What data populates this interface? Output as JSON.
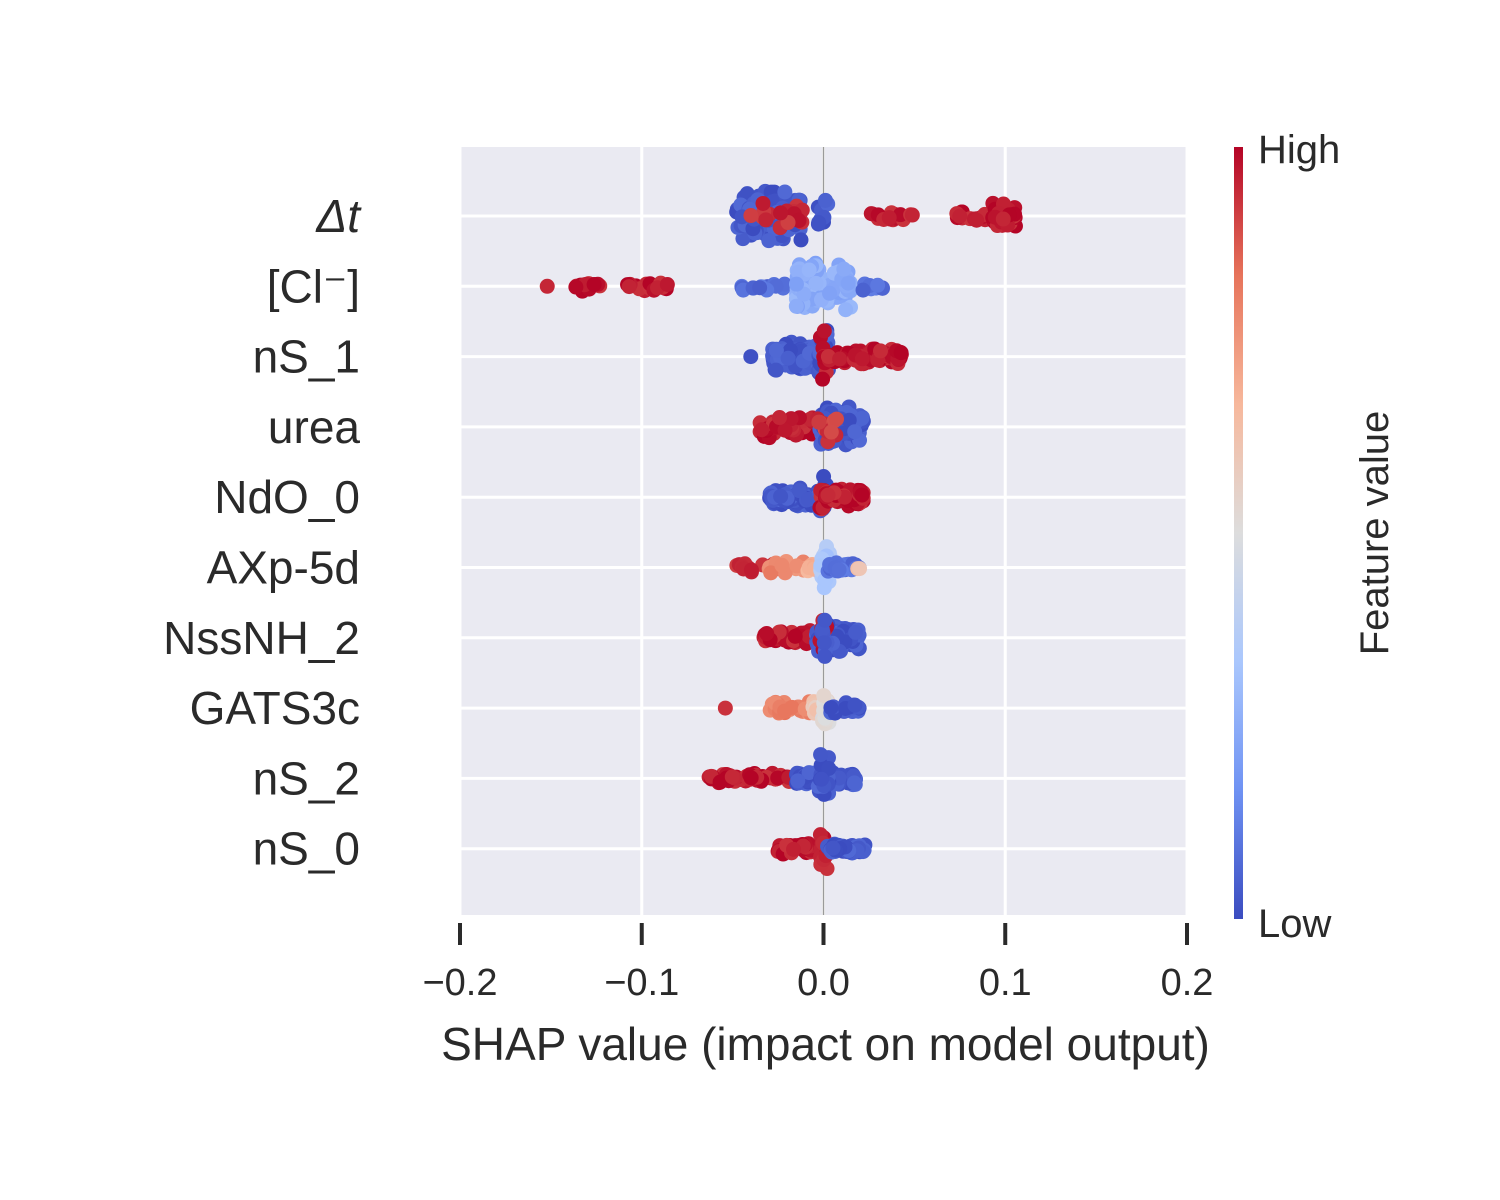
{
  "chart_data": {
    "type": "scatter",
    "subtype": "shap-beeswarm",
    "title": "",
    "xlabel": "SHAP value (impact on model output)",
    "ylabel": "",
    "xlim": [
      -0.2,
      0.2
    ],
    "xticks": [
      -0.2,
      -0.1,
      0.0,
      0.1,
      0.2
    ],
    "xtick_labels": [
      "−0.2",
      "−0.1",
      "0.0",
      "0.1",
      "0.2"
    ],
    "grid": true,
    "colorbar": {
      "label": "Feature value",
      "high_label": "High",
      "low_label": "Low",
      "colormap": [
        "#3b4cc0",
        "#6f92f3",
        "#aac7fd",
        "#dddddd",
        "#f7b89c",
        "#e7745b",
        "#b40426"
      ],
      "placement": "right"
    },
    "colors": {
      "background": "#eaeaf2",
      "grid": "#ffffff",
      "zero_line": "#9a9a9a",
      "high": "#b40426",
      "low": "#3b4cc0"
    },
    "features": [
      {
        "name": "Δt",
        "italic": true,
        "clusters": [
          {
            "x": [
              -0.048,
              -0.012
            ],
            "v": 0.03,
            "n": 160,
            "spread": 1.0
          },
          {
            "x": [
              -0.04,
              -0.01
            ],
            "v": 0.95,
            "n": 18,
            "spread": 0.5
          },
          {
            "x": [
              -0.003,
              0.003
            ],
            "v": 0.03,
            "n": 10,
            "spread": 0.9
          },
          {
            "x": [
              0.026,
              0.05
            ],
            "v": 0.97,
            "n": 16,
            "spread": 0.25
          },
          {
            "x": [
              0.073,
              0.09
            ],
            "v": 0.97,
            "n": 16,
            "spread": 0.25
          },
          {
            "x": [
              0.093,
              0.106
            ],
            "v": 0.97,
            "n": 40,
            "spread": 0.55
          }
        ]
      },
      {
        "name": "[Cl⁻]",
        "italic": false,
        "clusters": [
          {
            "x": [
              -0.152,
              -0.152
            ],
            "v": 0.97,
            "n": 1,
            "spread": 0.0
          },
          {
            "x": [
              -0.137,
              -0.122
            ],
            "v": 0.97,
            "n": 14,
            "spread": 0.2
          },
          {
            "x": [
              -0.108,
              -0.084
            ],
            "v": 0.97,
            "n": 20,
            "spread": 0.2
          },
          {
            "x": [
              -0.045,
              -0.02
            ],
            "v": 0.08,
            "n": 14,
            "spread": 0.2
          },
          {
            "x": [
              -0.015,
              0.015
            ],
            "v": 0.25,
            "n": 110,
            "spread": 1.0
          },
          {
            "x": [
              0.015,
              0.036
            ],
            "v": 0.08,
            "n": 8,
            "spread": 0.2
          }
        ]
      },
      {
        "name": "nS_1",
        "italic": false,
        "clusters": [
          {
            "x": [
              -0.04,
              -0.04
            ],
            "v": 0.03,
            "n": 1,
            "spread": 0.0
          },
          {
            "x": [
              -0.028,
              0.0
            ],
            "v": 0.03,
            "n": 120,
            "spread": 0.6
          },
          {
            "x": [
              -0.003,
              0.003
            ],
            "v": 0.03,
            "n": 24,
            "spread": 1.05
          },
          {
            "x": [
              -0.002,
              0.002
            ],
            "v": 0.97,
            "n": 8,
            "spread": 1.1
          },
          {
            "x": [
              0.002,
              0.043
            ],
            "v": 0.97,
            "n": 90,
            "spread": 0.3
          }
        ]
      },
      {
        "name": "urea",
        "italic": false,
        "clusters": [
          {
            "x": [
              -0.036,
              -0.005
            ],
            "v": 0.97,
            "n": 50,
            "spread": 0.45
          },
          {
            "x": [
              -0.002,
              0.022
            ],
            "v": 0.03,
            "n": 120,
            "spread": 0.85
          },
          {
            "x": [
              -0.005,
              0.008
            ],
            "v": 0.92,
            "n": 12,
            "spread": 0.6
          }
        ]
      },
      {
        "name": "NdO_0",
        "italic": false,
        "clusters": [
          {
            "x": [
              -0.03,
              -0.002
            ],
            "v": 0.03,
            "n": 100,
            "spread": 0.35
          },
          {
            "x": [
              -0.002,
              0.002
            ],
            "v": 0.03,
            "n": 14,
            "spread": 1.0
          },
          {
            "x": [
              -0.002,
              0.002
            ],
            "v": 0.97,
            "n": 8,
            "spread": 1.05
          },
          {
            "x": [
              0.001,
              0.022
            ],
            "v": 0.97,
            "n": 55,
            "spread": 0.35
          }
        ]
      },
      {
        "name": "AXp-5d",
        "italic": false,
        "clusters": [
          {
            "x": [
              -0.05,
              -0.02
            ],
            "v": 0.94,
            "n": 20,
            "spread": 0.2
          },
          {
            "x": [
              -0.03,
              -0.008
            ],
            "v": 0.78,
            "n": 16,
            "spread": 0.25
          },
          {
            "x": [
              -0.01,
              0.0
            ],
            "v": 0.7,
            "n": 8,
            "spread": 0.2
          },
          {
            "x": [
              -0.002,
              0.004
            ],
            "v": 0.35,
            "n": 30,
            "spread": 1.0
          },
          {
            "x": [
              0.002,
              0.02
            ],
            "v": 0.08,
            "n": 25,
            "spread": 0.2
          },
          {
            "x": [
              0.015,
              0.02
            ],
            "v": 0.62,
            "n": 2,
            "spread": 0.1
          }
        ]
      },
      {
        "name": "NssNH_2",
        "italic": false,
        "clusters": [
          {
            "x": [
              -0.033,
              -0.006
            ],
            "v": 0.97,
            "n": 45,
            "spread": 0.3
          },
          {
            "x": [
              -0.004,
              0.02
            ],
            "v": 0.03,
            "n": 90,
            "spread": 0.55
          },
          {
            "x": [
              -0.002,
              0.002
            ],
            "v": 0.97,
            "n": 8,
            "spread": 1.05
          },
          {
            "x": [
              -0.002,
              0.002
            ],
            "v": 0.03,
            "n": 8,
            "spread": 1.0
          }
        ]
      },
      {
        "name": "GATS3c",
        "italic": false,
        "clusters": [
          {
            "x": [
              -0.054,
              -0.054
            ],
            "v": 0.97,
            "n": 1,
            "spread": 0.0
          },
          {
            "x": [
              -0.03,
              -0.005
            ],
            "v": 0.8,
            "n": 35,
            "spread": 0.25
          },
          {
            "x": [
              -0.006,
              0.003
            ],
            "v": 0.6,
            "n": 20,
            "spread": 0.35
          },
          {
            "x": [
              -0.001,
              0.003
            ],
            "v": 0.5,
            "n": 12,
            "spread": 1.1
          },
          {
            "x": [
              0.004,
              0.02
            ],
            "v": 0.03,
            "n": 25,
            "spread": 0.25
          }
        ]
      },
      {
        "name": "nS_2",
        "italic": false,
        "clusters": [
          {
            "x": [
              -0.065,
              -0.012
            ],
            "v": 0.97,
            "n": 60,
            "spread": 0.2
          },
          {
            "x": [
              -0.015,
              0.018
            ],
            "v": 0.03,
            "n": 110,
            "spread": 0.3
          },
          {
            "x": [
              -0.003,
              0.003
            ],
            "v": 0.03,
            "n": 24,
            "spread": 1.05
          }
        ]
      },
      {
        "name": "nS_0",
        "italic": false,
        "clusters": [
          {
            "x": [
              -0.026,
              -0.004
            ],
            "v": 0.97,
            "n": 50,
            "spread": 0.25
          },
          {
            "x": [
              -0.002,
              0.002
            ],
            "v": 0.97,
            "n": 14,
            "spread": 1.0
          },
          {
            "x": [
              0.002,
              0.023
            ],
            "v": 0.03,
            "n": 70,
            "spread": 0.2
          }
        ]
      }
    ]
  }
}
